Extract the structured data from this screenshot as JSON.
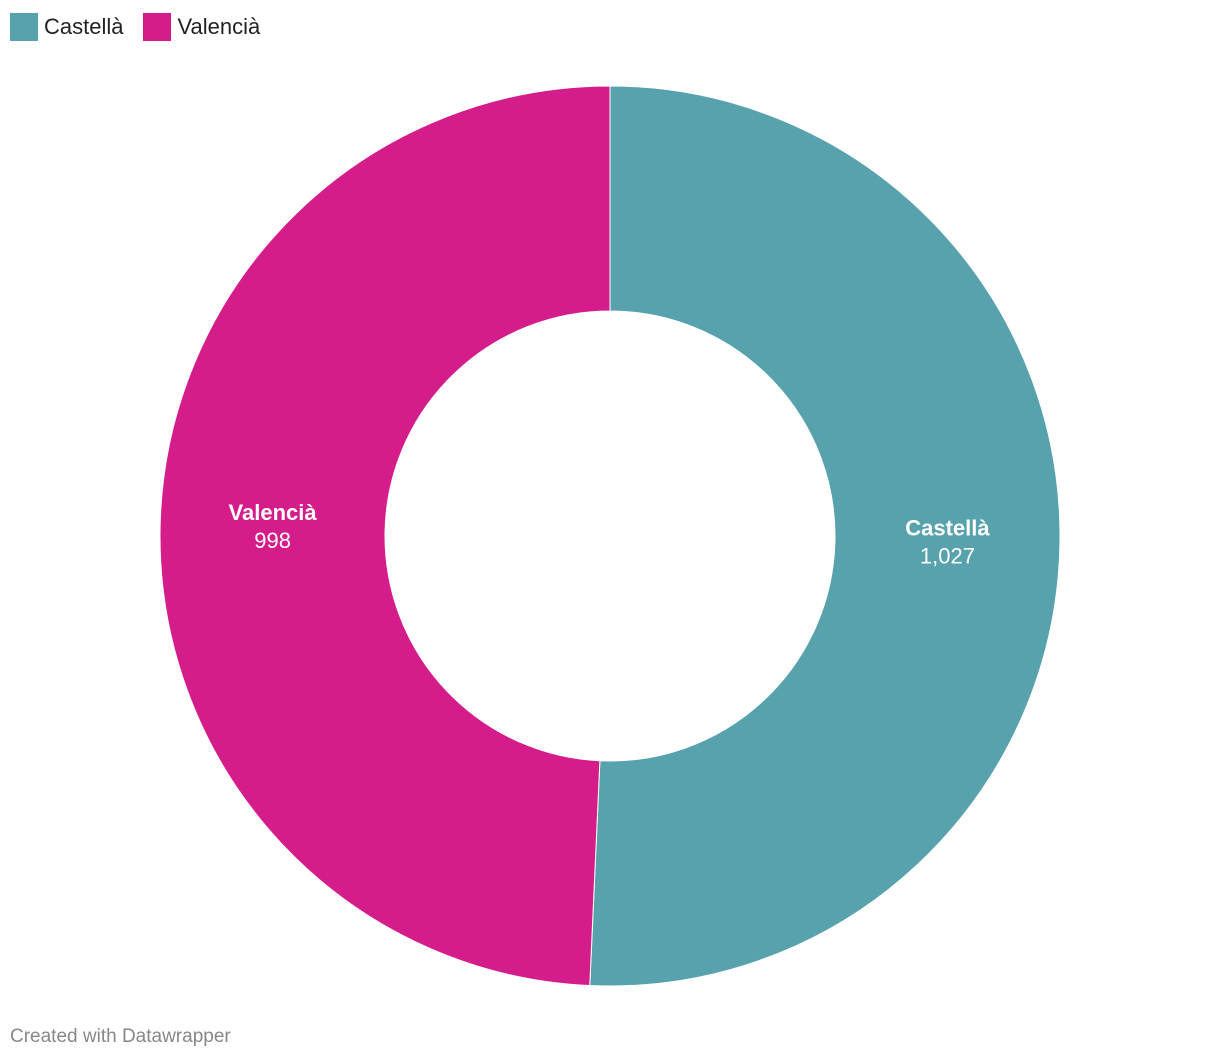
{
  "chart_data": {
    "type": "donut",
    "categories": [
      "Castellà",
      "Valencià"
    ],
    "values": [
      1027,
      998
    ],
    "value_labels": [
      "1,027",
      "998"
    ],
    "colors": [
      "#58a2ad",
      "#d41c8a"
    ],
    "legend": "top-left",
    "credit": "Created with Datawrapper"
  }
}
